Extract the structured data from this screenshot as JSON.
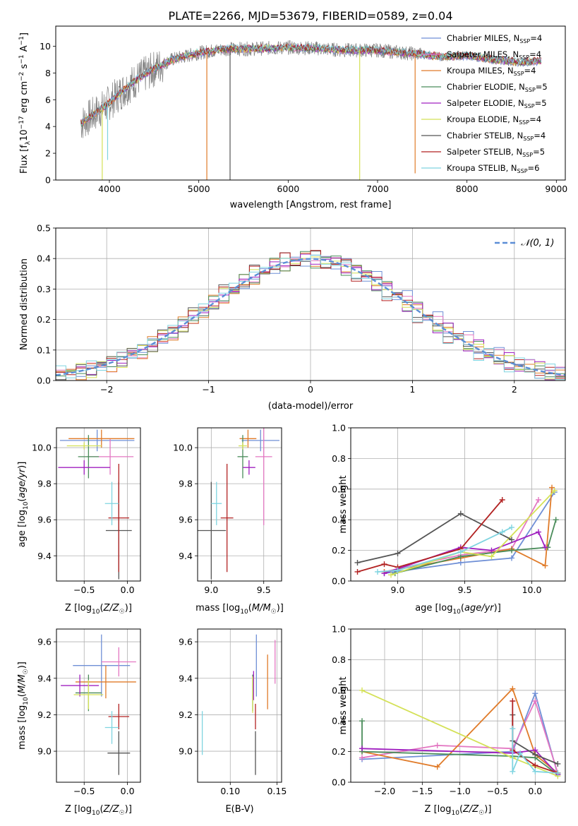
{
  "figure_title": "PLATE=2266, MJD=53679, FIBERID=0589, z=0.04",
  "colors": {
    "Chabrier MILES": "#6f8fd6",
    "Salpeter MILES": "#e377c2",
    "Kroupa MILES": "#e07b29",
    "Chabrier ELODIE": "#4a8c5a",
    "Salpeter ELODIE": "#a020c0",
    "Kroupa ELODIE": "#d4e157",
    "Chabrier STELIB": "#555555",
    "Salpeter STELIB": "#b22222",
    "Kroupa STELIB": "#7fd4e0"
  },
  "chart_data": [
    {
      "id": "spectrum",
      "type": "line",
      "title": "PLATE=2266, MJD=53679, FIBERID=0589, z=0.04",
      "xlabel": "wavelength [Angstrom, rest frame]",
      "ylabel": "Flux [f_λ10^-17 erg cm^-2 s^-1 A^-1]",
      "xlim": [
        3400,
        9100
      ],
      "ylim": [
        0,
        11.5
      ],
      "xticks": [
        4000,
        5000,
        6000,
        7000,
        8000,
        9000
      ],
      "yticks": [
        0,
        2,
        4,
        6,
        8,
        10
      ],
      "legend_position": "top-right",
      "legend": [
        {
          "base": "Chabrier MILES, N",
          "sub": "SSP",
          "tail": "=4"
        },
        {
          "base": "Salpeter MILES, N",
          "sub": "SSP",
          "tail": "=4"
        },
        {
          "base": "Kroupa MILES, N",
          "sub": "SSP",
          "tail": "=4"
        },
        {
          "base": "Chabrier ELODIE, N",
          "sub": "SSP",
          "tail": "=5"
        },
        {
          "base": "Salpeter ELODIE, N",
          "sub": "SSP",
          "tail": "=5"
        },
        {
          "base": "Kroupa ELODIE, N",
          "sub": "SSP",
          "tail": "=4"
        },
        {
          "base": "Chabrier STELIB, N",
          "sub": "SSP",
          "tail": "=4"
        },
        {
          "base": "Salpeter STELIB, N",
          "sub": "SSP",
          "tail": "=5"
        },
        {
          "base": "Kroupa STELIB, N",
          "sub": "SSP",
          "tail": "=6"
        }
      ],
      "model_curve": {
        "x": [
          3680,
          3800,
          3950,
          4100,
          4300,
          4500,
          4700,
          5000,
          5300,
          5600,
          6000,
          6300,
          6600,
          7000,
          7300,
          7500,
          7700,
          8000,
          8300,
          8600,
          8830
        ],
        "y": [
          4.2,
          4.8,
          5.5,
          6.4,
          7.5,
          8.3,
          9.0,
          9.5,
          9.8,
          9.8,
          9.9,
          9.85,
          9.7,
          9.7,
          9.5,
          9.4,
          9.2,
          9.3,
          9.0,
          8.8,
          8.9
        ]
      },
      "dips": [
        {
          "series": "Kroupa MILES",
          "x": 5090,
          "y": 0.0
        },
        {
          "series": "Kroupa ELODIE",
          "x": 3920,
          "y": 0.0
        },
        {
          "series": "Kroupa ELODIE",
          "x": 6800,
          "y": 0.0
        },
        {
          "series": "Kroupa MILES",
          "x": 7420,
          "y": 0.5
        },
        {
          "series": "Chabrier STELIB",
          "x": 5350,
          "y": 0.0
        },
        {
          "series": "Kroupa STELIB",
          "x": 3980,
          "y": 1.5
        }
      ]
    },
    {
      "id": "residuals",
      "type": "line",
      "xlabel": "(data-model)/error",
      "ylabel": "Normed distribution",
      "xlim": [
        -2.5,
        2.5
      ],
      "ylim": [
        0,
        0.5
      ],
      "xticks": [
        -2,
        -1,
        0,
        1,
        2
      ],
      "yticks": [
        0.0,
        0.1,
        0.2,
        0.3,
        0.4,
        0.5
      ],
      "grid": true,
      "legend_position": "top-right",
      "reference": {
        "name": "𝒩(0, 1)",
        "mean": 0,
        "sigma": 1,
        "color": "#5b8ed6"
      }
    },
    {
      "id": "age_vs_Z",
      "type": "scatter",
      "xlabel": "Z [log10(Z/Z☉)]",
      "ylabel": "age [log10(age/yr)]",
      "xlim": [
        -0.82,
        0.15
      ],
      "ylim": [
        9.26,
        10.11
      ],
      "xticks": [
        -0.5,
        0.0
      ],
      "yticks": [
        9.4,
        9.6,
        9.8,
        10.0
      ],
      "grid": true,
      "points": [
        {
          "series": "Chabrier MILES",
          "x": -0.35,
          "xerr": 0.43,
          "y": 10.04,
          "yerr": 0.06
        },
        {
          "series": "Salpeter MILES",
          "x": -0.2,
          "xerr": 0.27,
          "y": 9.95,
          "yerr": 0.1
        },
        {
          "series": "Kroupa MILES",
          "x": -0.3,
          "xerr": 0.38,
          "y": 10.05,
          "yerr": 0.05
        },
        {
          "series": "Chabrier ELODIE",
          "x": -0.45,
          "xerr": 0.12,
          "y": 9.95,
          "yerr": 0.12
        },
        {
          "series": "Salpeter ELODIE",
          "x": -0.5,
          "xerr": 0.3,
          "y": 9.89,
          "yerr": 0.04
        },
        {
          "series": "Kroupa ELODIE",
          "x": -0.5,
          "xerr": 0.2,
          "y": 10.01,
          "yerr": 0.02
        },
        {
          "series": "Chabrier STELIB",
          "x": -0.1,
          "xerr": 0.15,
          "y": 9.54,
          "yerr": 0.27
        },
        {
          "series": "Salpeter STELIB",
          "x": -0.1,
          "xerr": 0.12,
          "y": 9.61,
          "yerr": 0.3
        },
        {
          "series": "Kroupa STELIB",
          "x": -0.18,
          "xerr": 0.08,
          "y": 9.69,
          "yerr": 0.12
        }
      ]
    },
    {
      "id": "age_vs_mass",
      "type": "scatter",
      "xlabel": "mass [log10(M/M☉)]",
      "ylabel": "",
      "xlim": [
        8.87,
        9.67
      ],
      "ylim": [
        9.26,
        10.11
      ],
      "xticks": [
        9.0,
        9.5
      ],
      "yticks": [
        9.4,
        9.6,
        9.8,
        10.0
      ],
      "grid": true,
      "points": [
        {
          "series": "Chabrier MILES",
          "x": 9.47,
          "xerr": 0.18,
          "y": 10.04,
          "yerr": 0.06
        },
        {
          "series": "Salpeter MILES",
          "x": 9.5,
          "xerr": 0.08,
          "y": 9.95,
          "yerr": 0.38
        },
        {
          "series": "Kroupa MILES",
          "x": 9.35,
          "xerr": 0.08,
          "y": 10.05,
          "yerr": 0.05
        },
        {
          "series": "Chabrier ELODIE",
          "x": 9.3,
          "xerr": 0.05,
          "y": 9.95,
          "yerr": 0.12
        },
        {
          "series": "Salpeter ELODIE",
          "x": 9.36,
          "xerr": 0.06,
          "y": 9.89,
          "yerr": 0.04
        },
        {
          "series": "Kroupa ELODIE",
          "x": 9.3,
          "xerr": 0.04,
          "y": 10.01,
          "yerr": 0.02
        },
        {
          "series": "Chabrier STELIB",
          "x": 9.0,
          "xerr": 0.14,
          "y": 9.54,
          "yerr": 0.27
        },
        {
          "series": "Salpeter STELIB",
          "x": 9.15,
          "xerr": 0.06,
          "y": 9.61,
          "yerr": 0.3
        },
        {
          "series": "Kroupa STELIB",
          "x": 9.05,
          "xerr": 0.05,
          "y": 9.69,
          "yerr": 0.12
        }
      ]
    },
    {
      "id": "weight_vs_age",
      "type": "line",
      "xlabel": "age [log10(age/yr)]",
      "ylabel": "mass weight",
      "xlim": [
        8.65,
        10.25
      ],
      "ylim": [
        0,
        1
      ],
      "xticks": [
        9.0,
        9.5,
        10.0
      ],
      "yticks": [
        0.0,
        0.2,
        0.4,
        0.6,
        0.8,
        1.0
      ],
      "grid": true,
      "series": [
        {
          "name": "Chabrier MILES",
          "x": [
            8.9,
            9.47,
            9.85,
            10.17
          ],
          "y": [
            0.05,
            0.12,
            0.15,
            0.58
          ]
        },
        {
          "name": "Salpeter MILES",
          "x": [
            8.9,
            9.47,
            9.85,
            10.05
          ],
          "y": [
            0.06,
            0.17,
            0.21,
            0.53
          ]
        },
        {
          "name": "Kroupa MILES",
          "x": [
            8.9,
            9.47,
            9.85,
            10.1,
            10.15
          ],
          "y": [
            0.06,
            0.15,
            0.21,
            0.1,
            0.61
          ]
        },
        {
          "name": "Chabrier ELODIE",
          "x": [
            8.98,
            9.47,
            9.85,
            10.12,
            10.18
          ],
          "y": [
            0.05,
            0.16,
            0.2,
            0.22,
            0.4
          ]
        },
        {
          "name": "Salpeter ELODIE",
          "x": [
            8.9,
            9.47,
            9.7,
            10.05,
            10.1
          ],
          "y": [
            0.05,
            0.22,
            0.2,
            0.32,
            0.22
          ]
        },
        {
          "name": "Kroupa ELODIE",
          "x": [
            8.95,
            9.47,
            9.7,
            10.17
          ],
          "y": [
            0.04,
            0.19,
            0.16,
            0.59
          ]
        },
        {
          "name": "Chabrier STELIB",
          "x": [
            8.7,
            9.0,
            9.47,
            9.85
          ],
          "y": [
            0.12,
            0.18,
            0.44,
            0.27
          ]
        },
        {
          "name": "Salpeter STELIB",
          "x": [
            8.7,
            8.9,
            9.0,
            9.47,
            9.78
          ],
          "y": [
            0.06,
            0.11,
            0.09,
            0.21,
            0.53
          ]
        },
        {
          "name": "Kroupa STELIB",
          "x": [
            8.85,
            9.0,
            9.47,
            9.78,
            9.85
          ],
          "y": [
            0.06,
            0.07,
            0.19,
            0.32,
            0.35
          ]
        }
      ]
    },
    {
      "id": "mass_vs_Z",
      "type": "scatter",
      "xlabel": "Z [log10(Z/Z☉)]",
      "ylabel": "mass [log10(M/M☉)]",
      "xlim": [
        -0.82,
        0.15
      ],
      "ylim": [
        8.83,
        9.67
      ],
      "xticks": [
        -0.5,
        0.0
      ],
      "yticks": [
        9.0,
        9.2,
        9.4,
        9.6
      ],
      "grid": true,
      "points": [
        {
          "series": "Chabrier MILES",
          "x": -0.3,
          "xerr": 0.33,
          "y": 9.47,
          "yerr": 0.17
        },
        {
          "series": "Salpeter MILES",
          "x": -0.1,
          "xerr": 0.2,
          "y": 9.49,
          "yerr": 0.08
        },
        {
          "series": "Kroupa MILES",
          "x": -0.25,
          "xerr": 0.35,
          "y": 9.38,
          "yerr": 0.09
        },
        {
          "series": "Chabrier ELODIE",
          "x": -0.45,
          "xerr": 0.15,
          "y": 9.32,
          "yerr": 0.1
        },
        {
          "series": "Salpeter ELODIE",
          "x": -0.55,
          "xerr": 0.22,
          "y": 9.36,
          "yerr": 0.06
        },
        {
          "series": "Kroupa ELODIE",
          "x": -0.45,
          "xerr": 0.17,
          "y": 9.31,
          "yerr": 0.08
        },
        {
          "series": "Chabrier STELIB",
          "x": -0.1,
          "xerr": 0.13,
          "y": 8.99,
          "yerr": 0.12
        },
        {
          "series": "Salpeter STELIB",
          "x": -0.1,
          "xerr": 0.12,
          "y": 9.19,
          "yerr": 0.07
        },
        {
          "series": "Kroupa STELIB",
          "x": -0.18,
          "xerr": 0.08,
          "y": 9.13,
          "yerr": 0.09
        }
      ]
    },
    {
      "id": "mass_vs_EBV",
      "type": "scatter",
      "xlabel": "E(B-V)",
      "ylabel": "",
      "xlim": [
        0.065,
        0.155
      ],
      "ylim": [
        8.83,
        9.67
      ],
      "xticks": [
        0.1,
        0.15
      ],
      "yticks": [
        9.0,
        9.2,
        9.4,
        9.6
      ],
      "grid": true,
      "points": [
        {
          "series": "Chabrier MILES",
          "x": 0.128,
          "xerr": 0,
          "y": 9.47,
          "yerr": 0.17
        },
        {
          "series": "Salpeter MILES",
          "x": 0.148,
          "xerr": 0,
          "y": 9.49,
          "yerr": 0.12
        },
        {
          "series": "Kroupa MILES",
          "x": 0.14,
          "xerr": 0,
          "y": 9.38,
          "yerr": 0.15
        },
        {
          "series": "Chabrier ELODIE",
          "x": 0.124,
          "xerr": 0,
          "y": 9.32,
          "yerr": 0.1
        },
        {
          "series": "Salpeter ELODIE",
          "x": 0.125,
          "xerr": 0,
          "y": 9.36,
          "yerr": 0.08
        },
        {
          "series": "Kroupa ELODIE",
          "x": 0.124,
          "xerr": 0,
          "y": 9.31,
          "yerr": 0.1
        },
        {
          "series": "Chabrier STELIB",
          "x": 0.127,
          "xerr": 0,
          "y": 8.99,
          "yerr": 0.12
        },
        {
          "series": "Salpeter STELIB",
          "x": 0.127,
          "xerr": 0,
          "y": 9.19,
          "yerr": 0.07
        },
        {
          "series": "Kroupa STELIB",
          "x": 0.07,
          "xerr": 0,
          "y": 9.1,
          "yerr": 0.12
        }
      ]
    },
    {
      "id": "weight_vs_Z",
      "type": "line",
      "xlabel": "Z [log10(Z/Z☉)]",
      "ylabel": "mass weight",
      "xlim": [
        -2.45,
        0.4
      ],
      "ylim": [
        0,
        1
      ],
      "xticks": [
        -2.0,
        -1.5,
        -1.0,
        -0.5,
        0.0
      ],
      "yticks": [
        0.0,
        0.2,
        0.4,
        0.6,
        0.8,
        1.0
      ],
      "grid": true,
      "series": [
        {
          "name": "Chabrier MILES",
          "x": [
            -2.3,
            -0.3,
            0.0,
            0.3
          ],
          "y": [
            0.15,
            0.2,
            0.58,
            0.05
          ]
        },
        {
          "name": "Salpeter MILES",
          "x": [
            -2.3,
            -1.3,
            -0.3,
            0.0,
            0.3
          ],
          "y": [
            0.16,
            0.24,
            0.22,
            0.53,
            0.06
          ]
        },
        {
          "name": "Kroupa MILES",
          "x": [
            -2.3,
            -1.3,
            -0.3,
            0.0,
            0.3
          ],
          "y": [
            0.2,
            0.1,
            0.61,
            0.18,
            0.06
          ]
        },
        {
          "name": "Chabrier ELODIE",
          "x": [
            -2.3,
            -2.3,
            -0.3,
            0.0,
            0.3
          ],
          "y": [
            0.4,
            0.2,
            0.17,
            0.16,
            0.05
          ]
        },
        {
          "name": "Salpeter ELODIE",
          "x": [
            -2.3,
            -0.3,
            0.0,
            0.3
          ],
          "y": [
            0.22,
            0.19,
            0.21,
            0.05
          ]
        },
        {
          "name": "Kroupa ELODIE",
          "x": [
            -2.3,
            -0.3,
            0.3
          ],
          "y": [
            0.6,
            0.16,
            0.04
          ]
        },
        {
          "name": "Chabrier STELIB",
          "x": [
            -0.3,
            -0.3,
            0.0,
            0.3
          ],
          "y": [
            0.44,
            0.27,
            0.18,
            0.12
          ]
        },
        {
          "name": "Salpeter STELIB",
          "x": [
            -0.3,
            -0.3,
            0.0,
            0.3
          ],
          "y": [
            0.53,
            0.21,
            0.11,
            0.06
          ]
        },
        {
          "name": "Kroupa STELIB",
          "x": [
            -0.3,
            -0.3,
            -0.2,
            0.0,
            0.3
          ],
          "y": [
            0.35,
            0.07,
            0.19,
            0.07,
            0.06
          ]
        }
      ]
    }
  ]
}
